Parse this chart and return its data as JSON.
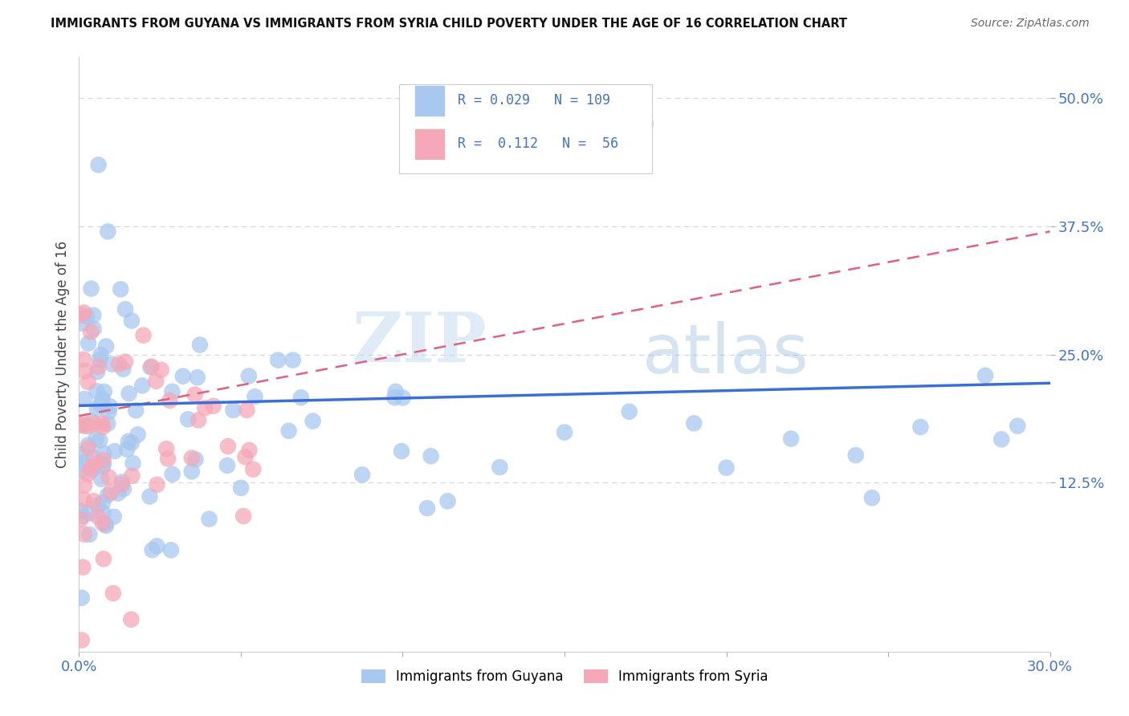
{
  "title": "IMMIGRANTS FROM GUYANA VS IMMIGRANTS FROM SYRIA CHILD POVERTY UNDER THE AGE OF 16 CORRELATION CHART",
  "source": "Source: ZipAtlas.com",
  "ylabel": "Child Poverty Under the Age of 16",
  "xlim": [
    0.0,
    0.3
  ],
  "ylim": [
    -0.04,
    0.54
  ],
  "ytick_values": [
    0.125,
    0.25,
    0.375,
    0.5
  ],
  "xtick_values": [
    0.0,
    0.05,
    0.1,
    0.15,
    0.2,
    0.25,
    0.3
  ],
  "guyana_color": "#a8c8f0",
  "syria_color": "#f5a8b8",
  "guyana_line_color": "#3b6fd4",
  "syria_line_color": "#e06080",
  "tick_label_color": "#4472c4",
  "guyana_R": 0.029,
  "guyana_N": 109,
  "syria_R": 0.112,
  "syria_N": 56,
  "watermark_zip": "ZIP",
  "watermark_atlas": "atlas",
  "legend_label1": "Immigrants from Guyana",
  "legend_label2": "Immigrants from Syria",
  "background_color": "#ffffff",
  "grid_color": "#d0d8e8",
  "guyana_line_y0": 0.2,
  "guyana_line_y1": 0.222,
  "syria_line_y0": 0.19,
  "syria_line_y1": 0.37
}
